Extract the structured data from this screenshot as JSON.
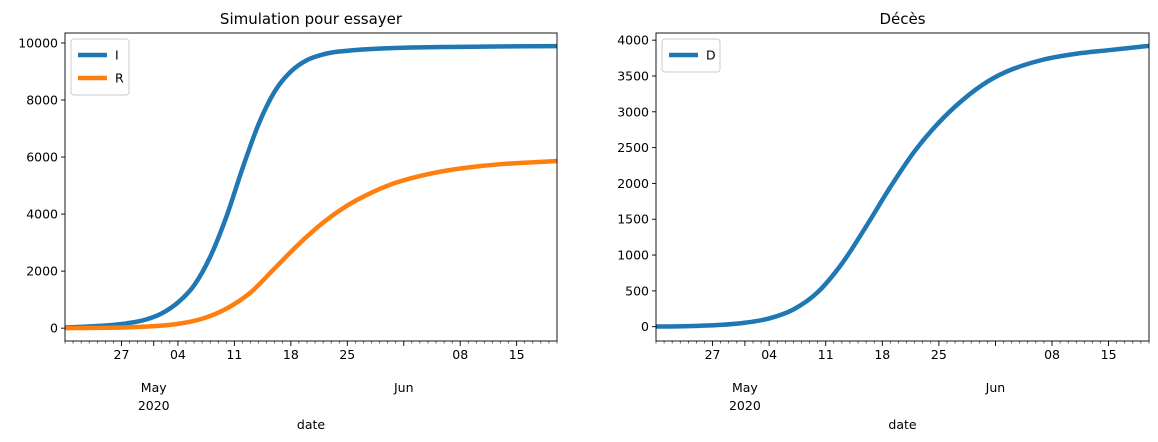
{
  "chart_data": [
    {
      "type": "line",
      "title": "Simulation pour essayer",
      "xlabel": "date",
      "ylabel": "",
      "x_range": [
        "2020-04-20",
        "2020-06-20"
      ],
      "ylim": [
        -450,
        10350
      ],
      "yticks": [
        0,
        2000,
        4000,
        6000,
        8000,
        10000
      ],
      "ytick_labels": [
        "0",
        "2000",
        "4000",
        "6000",
        "8000",
        "10000"
      ],
      "xtick_labels": [
        {
          "date": "2020-04-27",
          "label": "27"
        },
        {
          "date": "2020-05-04",
          "label": "04"
        },
        {
          "date": "2020-05-11",
          "label": "11"
        },
        {
          "date": "2020-05-18",
          "label": "18"
        },
        {
          "date": "2020-05-25",
          "label": "25"
        },
        {
          "date": "2020-06-08",
          "label": "08"
        },
        {
          "date": "2020-06-15",
          "label": "15"
        }
      ],
      "month_labels": [
        {
          "date": "2020-05-01",
          "label": "May",
          "sublabel": "2020"
        },
        {
          "date": "2020-06-01",
          "label": "Jun",
          "sublabel": ""
        }
      ],
      "legend": "upper-left",
      "grid": false,
      "series": [
        {
          "name": "I",
          "color": "#1f77b4",
          "points": [
            [
              "2020-04-20",
              25
            ],
            [
              "2020-04-22",
              45
            ],
            [
              "2020-04-24",
              75
            ],
            [
              "2020-04-26",
              115
            ],
            [
              "2020-04-28",
              185
            ],
            [
              "2020-04-30",
              300
            ],
            [
              "2020-05-02",
              520
            ],
            [
              "2020-05-04",
              900
            ],
            [
              "2020-05-06",
              1500
            ],
            [
              "2020-05-08",
              2500
            ],
            [
              "2020-05-10",
              3900
            ],
            [
              "2020-05-12",
              5600
            ],
            [
              "2020-05-14",
              7150
            ],
            [
              "2020-05-16",
              8300
            ],
            [
              "2020-05-18",
              9000
            ],
            [
              "2020-05-20",
              9400
            ],
            [
              "2020-05-22",
              9600
            ],
            [
              "2020-05-24",
              9700
            ],
            [
              "2020-05-28",
              9790
            ],
            [
              "2020-06-02",
              9840
            ],
            [
              "2020-06-08",
              9865
            ],
            [
              "2020-06-14",
              9880
            ],
            [
              "2020-06-20",
              9890
            ]
          ]
        },
        {
          "name": "R",
          "color": "#ff7f0e",
          "points": [
            [
              "2020-04-20",
              0
            ],
            [
              "2020-04-24",
              10
            ],
            [
              "2020-04-28",
              30
            ],
            [
              "2020-05-01",
              70
            ],
            [
              "2020-05-04",
              150
            ],
            [
              "2020-05-07",
              330
            ],
            [
              "2020-05-10",
              680
            ],
            [
              "2020-05-13",
              1250
            ],
            [
              "2020-05-16",
              2100
            ],
            [
              "2020-05-19",
              2950
            ],
            [
              "2020-05-22",
              3700
            ],
            [
              "2020-05-25",
              4300
            ],
            [
              "2020-05-28",
              4750
            ],
            [
              "2020-05-31",
              5100
            ],
            [
              "2020-06-04",
              5400
            ],
            [
              "2020-06-08",
              5600
            ],
            [
              "2020-06-13",
              5750
            ],
            [
              "2020-06-20",
              5860
            ]
          ]
        }
      ]
    },
    {
      "type": "line",
      "title": "Décès",
      "xlabel": "date",
      "ylabel": "",
      "x_range": [
        "2020-04-20",
        "2020-06-20"
      ],
      "ylim": [
        -200,
        4100
      ],
      "yticks": [
        0,
        500,
        1000,
        1500,
        2000,
        2500,
        3000,
        3500,
        4000
      ],
      "ytick_labels": [
        "0",
        "500",
        "1000",
        "1500",
        "2000",
        "2500",
        "3000",
        "3500",
        "4000"
      ],
      "xtick_labels": [
        {
          "date": "2020-04-27",
          "label": "27"
        },
        {
          "date": "2020-05-04",
          "label": "04"
        },
        {
          "date": "2020-05-11",
          "label": "11"
        },
        {
          "date": "2020-05-18",
          "label": "18"
        },
        {
          "date": "2020-05-25",
          "label": "25"
        },
        {
          "date": "2020-06-08",
          "label": "08"
        },
        {
          "date": "2020-06-15",
          "label": "15"
        }
      ],
      "month_labels": [
        {
          "date": "2020-05-01",
          "label": "May",
          "sublabel": "2020"
        },
        {
          "date": "2020-06-01",
          "label": "Jun",
          "sublabel": ""
        }
      ],
      "legend": "upper-left",
      "grid": false,
      "series": [
        {
          "name": "D",
          "color": "#1f77b4",
          "points": [
            [
              "2020-04-20",
              2
            ],
            [
              "2020-04-24",
              8
            ],
            [
              "2020-04-28",
              25
            ],
            [
              "2020-05-01",
              55
            ],
            [
              "2020-05-04",
              115
            ],
            [
              "2020-05-07",
              240
            ],
            [
              "2020-05-10",
              480
            ],
            [
              "2020-05-13",
              880
            ],
            [
              "2020-05-16",
              1400
            ],
            [
              "2020-05-19",
              1950
            ],
            [
              "2020-05-22",
              2450
            ],
            [
              "2020-05-25",
              2850
            ],
            [
              "2020-05-28",
              3170
            ],
            [
              "2020-05-31",
              3420
            ],
            [
              "2020-06-03",
              3590
            ],
            [
              "2020-06-07",
              3730
            ],
            [
              "2020-06-11",
              3810
            ],
            [
              "2020-06-15",
              3860
            ],
            [
              "2020-06-20",
              3920
            ]
          ]
        }
      ]
    }
  ]
}
